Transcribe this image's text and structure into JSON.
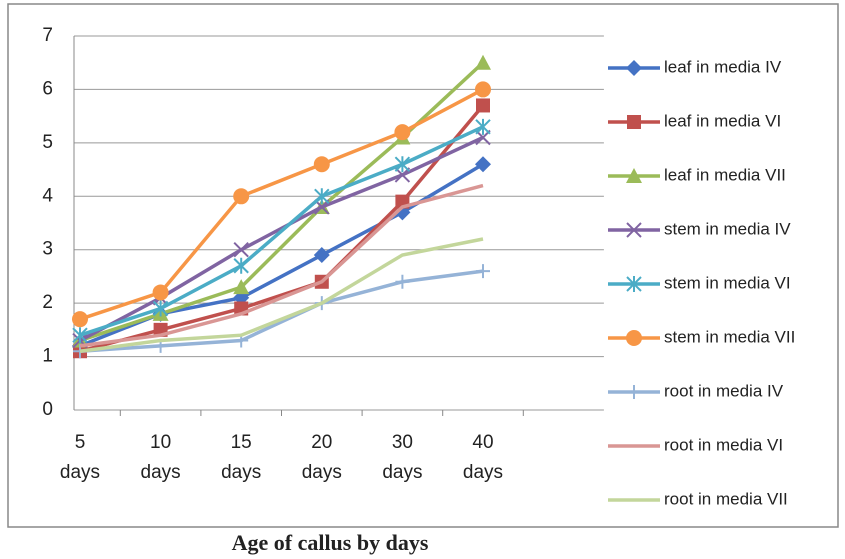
{
  "chart_data": {
    "type": "line",
    "x_label": "Age of callus by days",
    "categories": [
      "5 days",
      "10 days",
      "15 days",
      "20 days",
      "30 days",
      "40 days"
    ],
    "ylim": [
      0,
      7
    ],
    "yticks": [
      0,
      1,
      2,
      3,
      4,
      5,
      6,
      7
    ],
    "grid": true,
    "legend": "right",
    "series": [
      {
        "name": "leaf in media IV",
        "color": "#4472c4",
        "marker": "diamond",
        "values": [
          1.2,
          1.8,
          2.1,
          2.9,
          3.7,
          4.6
        ]
      },
      {
        "name": "leaf in media VI",
        "color": "#c0504d",
        "marker": "square",
        "values": [
          1.1,
          1.5,
          1.9,
          2.4,
          3.9,
          5.7
        ]
      },
      {
        "name": "leaf in media VII",
        "color": "#9bbb59",
        "marker": "triangle",
        "values": [
          1.3,
          1.8,
          2.3,
          3.8,
          5.1,
          6.5
        ]
      },
      {
        "name": "stem in media IV",
        "color": "#8064a2",
        "marker": "x",
        "values": [
          1.3,
          2.1,
          3.0,
          3.8,
          4.4,
          5.1
        ]
      },
      {
        "name": "stem in media VI",
        "color": "#4bacc6",
        "marker": "star",
        "values": [
          1.4,
          1.9,
          2.7,
          4.0,
          4.6,
          5.3
        ]
      },
      {
        "name": "stem in media VII",
        "color": "#f79646",
        "marker": "circle",
        "values": [
          1.7,
          2.2,
          4.0,
          4.6,
          5.2,
          6.0
        ]
      },
      {
        "name": "root in media IV",
        "color": "#95b3d7",
        "marker": "plus",
        "values": [
          1.1,
          1.2,
          1.3,
          2.0,
          2.4,
          2.6
        ]
      },
      {
        "name": "root in media VI",
        "color": "#d99694",
        "marker": "none",
        "values": [
          1.2,
          1.4,
          1.8,
          2.4,
          3.8,
          4.2
        ]
      },
      {
        "name": "root in media VII",
        "color": "#c3d69b",
        "marker": "none",
        "values": [
          1.1,
          1.3,
          1.4,
          2.0,
          2.9,
          3.2
        ]
      }
    ]
  }
}
